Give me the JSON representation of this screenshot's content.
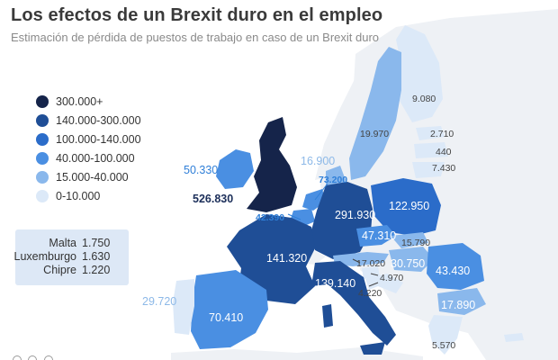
{
  "title": "Los efectos de un Brexit duro en el empleo",
  "subtitle": "Estimación de pérdida de puestos de trabajo en caso de un Brexit duro",
  "colors": {
    "tier_300k_plus": "#15244a",
    "tier_140k_300k": "#1f4e96",
    "tier_100k_140k": "#2b6cc9",
    "tier_40k_100k": "#4a8fe2",
    "tier_15k_40k": "#8ab8ec",
    "tier_0_10k": "#dce9f8",
    "non_eu": "#eef1f5"
  },
  "legend": {
    "items": [
      {
        "label": "300.000+",
        "color": "#15244a"
      },
      {
        "label": "140.000-300.000",
        "color": "#1f4e96"
      },
      {
        "label": "100.000-140.000",
        "color": "#2b6cc9"
      },
      {
        "label": "40.000-100.000",
        "color": "#4a8fe2"
      },
      {
        "label": "15.000-40.000",
        "color": "#8ab8ec"
      },
      {
        "label": "0-10.000",
        "color": "#dce9f8"
      }
    ]
  },
  "small_countries": [
    {
      "name": "Malta",
      "value": "1.750"
    },
    {
      "name": "Luxemburgo",
      "value": "1.630"
    },
    {
      "name": "Chipre",
      "value": "1.220"
    }
  ],
  "map_labels": {
    "uk": "526.830",
    "ireland": "50.330",
    "germany": "291.930",
    "france": "141.320",
    "spain": "70.410",
    "portugal": "29.720",
    "italy": "139.140",
    "poland": "122.950",
    "czechia": "47.310",
    "slovakia": "15.790",
    "austria": "17.020",
    "hungary": "30.750",
    "slovenia": "4.970",
    "croatia": "4.220",
    "romania": "43.430",
    "bulgaria": "17.890",
    "greece": "5.570",
    "netherlands": "73.200",
    "belgium": "42.390",
    "denmark": "16.900",
    "sweden": "19.970",
    "finland": "9.080",
    "estonia": "2.710",
    "latvia": "440",
    "lithuania": "7.430"
  }
}
